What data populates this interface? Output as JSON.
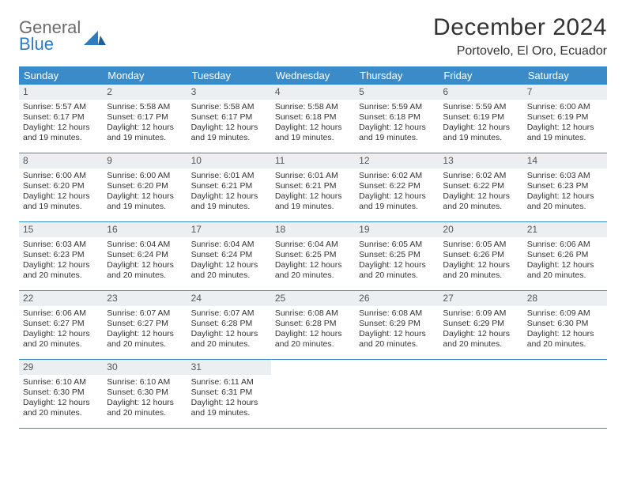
{
  "brand": {
    "general": "General",
    "blue": "Blue"
  },
  "title": "December 2024",
  "location": "Portovelo, El Oro, Ecuador",
  "colors": {
    "header_bg": "#3b8bc9",
    "header_text": "#ffffff",
    "daynum_bg": "#eceff1",
    "rule": "#3b8bc9",
    "logo_gray": "#6b6b6b",
    "logo_blue": "#2f7bbf"
  },
  "weekdays": [
    "Sunday",
    "Monday",
    "Tuesday",
    "Wednesday",
    "Thursday",
    "Friday",
    "Saturday"
  ],
  "days": [
    {
      "n": 1,
      "sr": "5:57 AM",
      "ss": "6:17 PM",
      "dl": "12 hours and 19 minutes."
    },
    {
      "n": 2,
      "sr": "5:58 AM",
      "ss": "6:17 PM",
      "dl": "12 hours and 19 minutes."
    },
    {
      "n": 3,
      "sr": "5:58 AM",
      "ss": "6:17 PM",
      "dl": "12 hours and 19 minutes."
    },
    {
      "n": 4,
      "sr": "5:58 AM",
      "ss": "6:18 PM",
      "dl": "12 hours and 19 minutes."
    },
    {
      "n": 5,
      "sr": "5:59 AM",
      "ss": "6:18 PM",
      "dl": "12 hours and 19 minutes."
    },
    {
      "n": 6,
      "sr": "5:59 AM",
      "ss": "6:19 PM",
      "dl": "12 hours and 19 minutes."
    },
    {
      "n": 7,
      "sr": "6:00 AM",
      "ss": "6:19 PM",
      "dl": "12 hours and 19 minutes."
    },
    {
      "n": 8,
      "sr": "6:00 AM",
      "ss": "6:20 PM",
      "dl": "12 hours and 19 minutes."
    },
    {
      "n": 9,
      "sr": "6:00 AM",
      "ss": "6:20 PM",
      "dl": "12 hours and 19 minutes."
    },
    {
      "n": 10,
      "sr": "6:01 AM",
      "ss": "6:21 PM",
      "dl": "12 hours and 19 minutes."
    },
    {
      "n": 11,
      "sr": "6:01 AM",
      "ss": "6:21 PM",
      "dl": "12 hours and 19 minutes."
    },
    {
      "n": 12,
      "sr": "6:02 AM",
      "ss": "6:22 PM",
      "dl": "12 hours and 19 minutes."
    },
    {
      "n": 13,
      "sr": "6:02 AM",
      "ss": "6:22 PM",
      "dl": "12 hours and 20 minutes."
    },
    {
      "n": 14,
      "sr": "6:03 AM",
      "ss": "6:23 PM",
      "dl": "12 hours and 20 minutes."
    },
    {
      "n": 15,
      "sr": "6:03 AM",
      "ss": "6:23 PM",
      "dl": "12 hours and 20 minutes."
    },
    {
      "n": 16,
      "sr": "6:04 AM",
      "ss": "6:24 PM",
      "dl": "12 hours and 20 minutes."
    },
    {
      "n": 17,
      "sr": "6:04 AM",
      "ss": "6:24 PM",
      "dl": "12 hours and 20 minutes."
    },
    {
      "n": 18,
      "sr": "6:04 AM",
      "ss": "6:25 PM",
      "dl": "12 hours and 20 minutes."
    },
    {
      "n": 19,
      "sr": "6:05 AM",
      "ss": "6:25 PM",
      "dl": "12 hours and 20 minutes."
    },
    {
      "n": 20,
      "sr": "6:05 AM",
      "ss": "6:26 PM",
      "dl": "12 hours and 20 minutes."
    },
    {
      "n": 21,
      "sr": "6:06 AM",
      "ss": "6:26 PM",
      "dl": "12 hours and 20 minutes."
    },
    {
      "n": 22,
      "sr": "6:06 AM",
      "ss": "6:27 PM",
      "dl": "12 hours and 20 minutes."
    },
    {
      "n": 23,
      "sr": "6:07 AM",
      "ss": "6:27 PM",
      "dl": "12 hours and 20 minutes."
    },
    {
      "n": 24,
      "sr": "6:07 AM",
      "ss": "6:28 PM",
      "dl": "12 hours and 20 minutes."
    },
    {
      "n": 25,
      "sr": "6:08 AM",
      "ss": "6:28 PM",
      "dl": "12 hours and 20 minutes."
    },
    {
      "n": 26,
      "sr": "6:08 AM",
      "ss": "6:29 PM",
      "dl": "12 hours and 20 minutes."
    },
    {
      "n": 27,
      "sr": "6:09 AM",
      "ss": "6:29 PM",
      "dl": "12 hours and 20 minutes."
    },
    {
      "n": 28,
      "sr": "6:09 AM",
      "ss": "6:30 PM",
      "dl": "12 hours and 20 minutes."
    },
    {
      "n": 29,
      "sr": "6:10 AM",
      "ss": "6:30 PM",
      "dl": "12 hours and 20 minutes."
    },
    {
      "n": 30,
      "sr": "6:10 AM",
      "ss": "6:30 PM",
      "dl": "12 hours and 20 minutes."
    },
    {
      "n": 31,
      "sr": "6:11 AM",
      "ss": "6:31 PM",
      "dl": "12 hours and 19 minutes."
    }
  ],
  "labels": {
    "sunrise": "Sunrise: ",
    "sunset": "Sunset: ",
    "daylight": "Daylight: "
  },
  "layout": {
    "first_weekday_index": 0,
    "total_cells": 35
  }
}
